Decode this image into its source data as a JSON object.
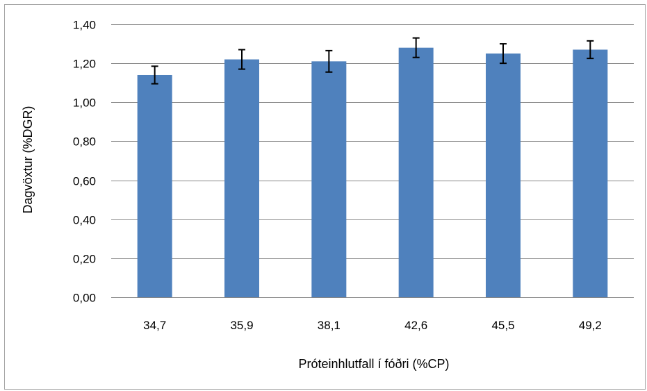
{
  "chart_data": {
    "type": "bar",
    "title": "",
    "xlabel": "Próteinhlutfall í fóðri (%CP)",
    "ylabel": "Dagvöxtur (%DGR)",
    "categories": [
      "34,7",
      "35,9",
      "38,1",
      "42,6",
      "45,5",
      "49,2"
    ],
    "values": [
      1.14,
      1.22,
      1.21,
      1.28,
      1.25,
      1.27
    ],
    "error": [
      0.045,
      0.05,
      0.055,
      0.05,
      0.05,
      0.045
    ],
    "ylim": [
      0,
      1.4
    ],
    "yticks": [
      "0,00",
      "0,20",
      "0,40",
      "0,60",
      "0,80",
      "1,00",
      "1,20",
      "1,40"
    ],
    "grid": true,
    "legend": "none",
    "colors": {
      "bar": "#4f81bd",
      "grid": "#868686",
      "error_bar": "#000000",
      "frame": "#a6a6a6"
    }
  }
}
